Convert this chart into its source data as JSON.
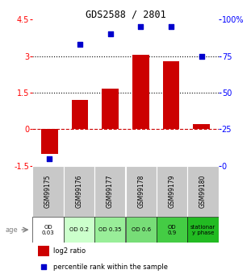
{
  "title": "GDS2588 / 2801",
  "samples": [
    "GSM99175",
    "GSM99176",
    "GSM99177",
    "GSM99178",
    "GSM99179",
    "GSM99180"
  ],
  "log2_ratio": [
    -1.0,
    1.2,
    1.65,
    3.05,
    2.8,
    0.2
  ],
  "percentile_rank": [
    5,
    83,
    90,
    95,
    95,
    75
  ],
  "bar_color": "#cc0000",
  "dot_color": "#0000cc",
  "ylim_left": [
    -1.5,
    4.5
  ],
  "ylim_right": [
    0,
    100
  ],
  "yticks_left": [
    -1.5,
    0,
    1.5,
    3,
    4.5
  ],
  "yticks_right": [
    0,
    25,
    50,
    75,
    100
  ],
  "age_labels": [
    "OD\n0.03",
    "OD 0.2",
    "OD 0.35",
    "OD 0.6",
    "OD\n0.9",
    "stationar\ny phase"
  ],
  "age_bg_colors": [
    "#ffffff",
    "#ccffcc",
    "#99ee99",
    "#77dd77",
    "#44cc44",
    "#22bb22"
  ],
  "sample_bg_color": "#c8c8c8",
  "legend_red": "log2 ratio",
  "legend_blue": "percentile rank within the sample"
}
